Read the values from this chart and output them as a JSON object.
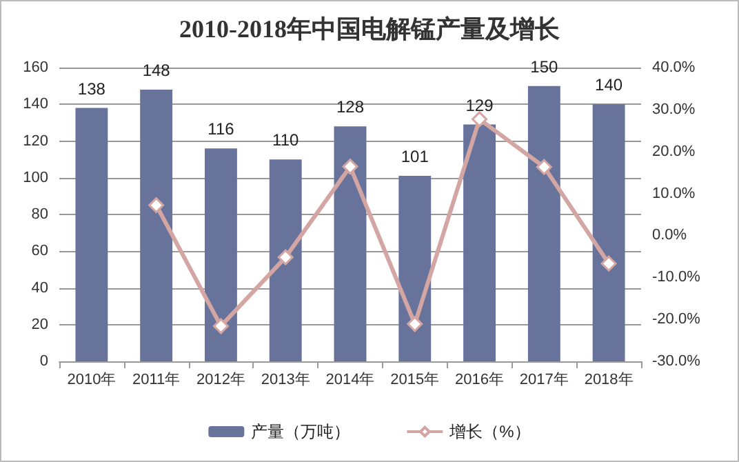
{
  "chart_data": {
    "type": "bar",
    "title": "2010-2018年中国电解锰产量及增长",
    "categories": [
      "2010年",
      "2011年",
      "2012年",
      "2013年",
      "2014年",
      "2015年",
      "2016年",
      "2017年",
      "2018年"
    ],
    "series": [
      {
        "name": "产量（万吨）",
        "color": "#67739b",
        "values": [
          138,
          148,
          116,
          110,
          128,
          101,
          129,
          150,
          140
        ],
        "value_labels": [
          "138",
          "148",
          "116",
          "110",
          "128",
          "101",
          "129",
          "150",
          "140"
        ]
      },
      {
        "name": "增长（%）",
        "type": "line",
        "axis": "y2",
        "color": "#d3a6a3",
        "marker": "diamond",
        "values": [
          null,
          7.2,
          -21.6,
          -5.2,
          16.4,
          -21.1,
          27.7,
          16.3,
          -6.7
        ]
      }
    ],
    "ylim": [
      0,
      160
    ],
    "yticks": [
      0,
      20,
      40,
      60,
      80,
      100,
      120,
      140,
      160
    ],
    "y2lim": [
      -30,
      40
    ],
    "y2ticks": [
      {
        "value": -30,
        "label": "-30.0%"
      },
      {
        "value": -20,
        "label": "-20.0%"
      },
      {
        "value": -10,
        "label": "-10.0%"
      },
      {
        "value": 0,
        "label": "0.0%"
      },
      {
        "value": 10,
        "label": "10.0%"
      },
      {
        "value": 20,
        "label": "20.0%"
      },
      {
        "value": 30,
        "label": "30.0%"
      },
      {
        "value": 40,
        "label": "40.0%"
      }
    ],
    "grid": "y",
    "legend": "bottom"
  }
}
